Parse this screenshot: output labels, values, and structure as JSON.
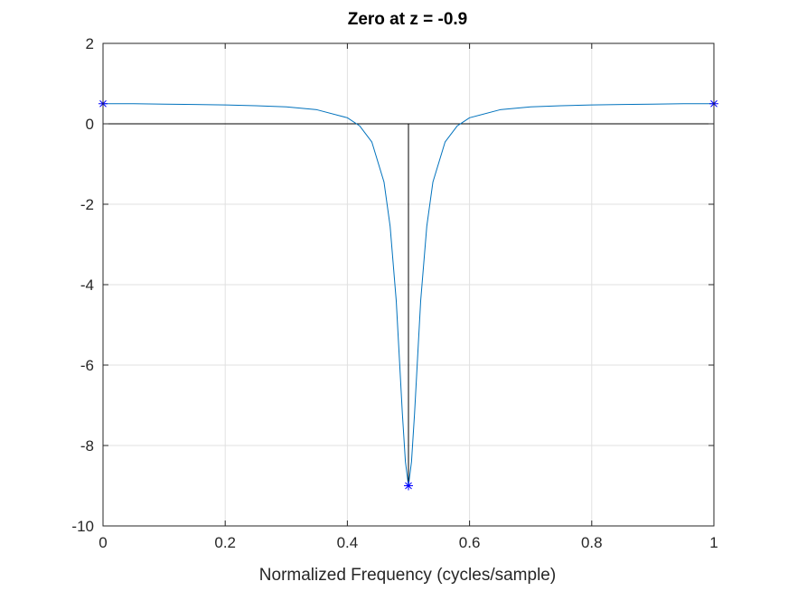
{
  "chart_data": {
    "type": "line",
    "title": "Zero at z = -0.9",
    "xlabel": "Normalized Frequency (cycles/sample)",
    "ylabel": "",
    "xlim": [
      0,
      1
    ],
    "ylim": [
      -10,
      2
    ],
    "xticks": [
      0,
      0.2,
      0.4,
      0.6,
      0.8,
      1
    ],
    "xtick_labels": [
      "0",
      "0.2",
      "0.4",
      "0.6",
      "0.8",
      "1"
    ],
    "yticks": [
      2,
      0,
      -2,
      -4,
      -6,
      -8,
      -10
    ],
    "ytick_labels": [
      "2",
      "0",
      "-2",
      "-4",
      "-6",
      "-8",
      "-10"
    ],
    "grid": true,
    "colors": {
      "curve": "#0072bd",
      "markers": "#0000ff",
      "zero_line": "#000000",
      "stem": "#000000",
      "grid": "#e0e0e0"
    },
    "series": [
      {
        "kind": "curve",
        "x": [
          0,
          0.05,
          0.1,
          0.15,
          0.2,
          0.25,
          0.3,
          0.35,
          0.4,
          0.42,
          0.44,
          0.46,
          0.47,
          0.48,
          0.49,
          0.495,
          0.5,
          0.505,
          0.51,
          0.52,
          0.53,
          0.54,
          0.56,
          0.58,
          0.6,
          0.65,
          0.7,
          0.75,
          0.8,
          0.85,
          0.9,
          0.95,
          1
        ],
        "y": [
          0.5,
          0.5,
          0.49,
          0.48,
          0.47,
          0.45,
          0.42,
          0.35,
          0.15,
          -0.05,
          -0.45,
          -1.45,
          -2.55,
          -4.4,
          -7.2,
          -8.4,
          -9.0,
          -8.4,
          -7.2,
          -4.4,
          -2.55,
          -1.45,
          -0.45,
          -0.05,
          0.15,
          0.35,
          0.42,
          0.45,
          0.47,
          0.48,
          0.49,
          0.5,
          0.5
        ]
      },
      {
        "kind": "markers",
        "marker": "asterisk",
        "x": [
          0,
          0.5,
          1
        ],
        "y": [
          0.5,
          -9.0,
          0.5
        ]
      },
      {
        "kind": "stem",
        "x": [
          0.5
        ],
        "y": [
          -9.0
        ]
      },
      {
        "kind": "hline",
        "y": 0
      }
    ]
  }
}
